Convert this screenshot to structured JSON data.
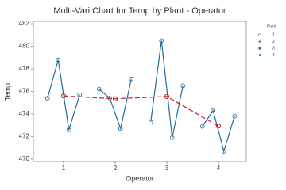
{
  "chart_data": {
    "type": "multi-vari",
    "title": "Multi-Vari Chart for Temp by Plant - Operator",
    "x_label": "Operator",
    "y_label": "Temp",
    "legend_title": "Plant",
    "categories": [
      "1",
      "2",
      "3",
      "4"
    ],
    "series": [
      {
        "name": "1",
        "color": "#1f5f96",
        "values": [
          475.4,
          476.2,
          473.3,
          472.9
        ]
      },
      {
        "name": "2",
        "color": "#1f5f96",
        "values": [
          478.8,
          475.4,
          480.5,
          474.3
        ]
      },
      {
        "name": "3",
        "color": "#1f5f96",
        "values": [
          472.6,
          472.7,
          471.9,
          470.7
        ]
      },
      {
        "name": "4",
        "color": "#1f5f96",
        "values": [
          475.7,
          477.1,
          476.5,
          473.8
        ]
      }
    ],
    "means": {
      "color": "#c0202a",
      "values": [
        475.6,
        475.35,
        475.55,
        472.925
      ]
    },
    "line_color": "#1e6e9e",
    "ylim": [
      470,
      482
    ],
    "yticks": [
      470,
      472,
      474,
      476,
      478,
      480,
      482
    ]
  }
}
